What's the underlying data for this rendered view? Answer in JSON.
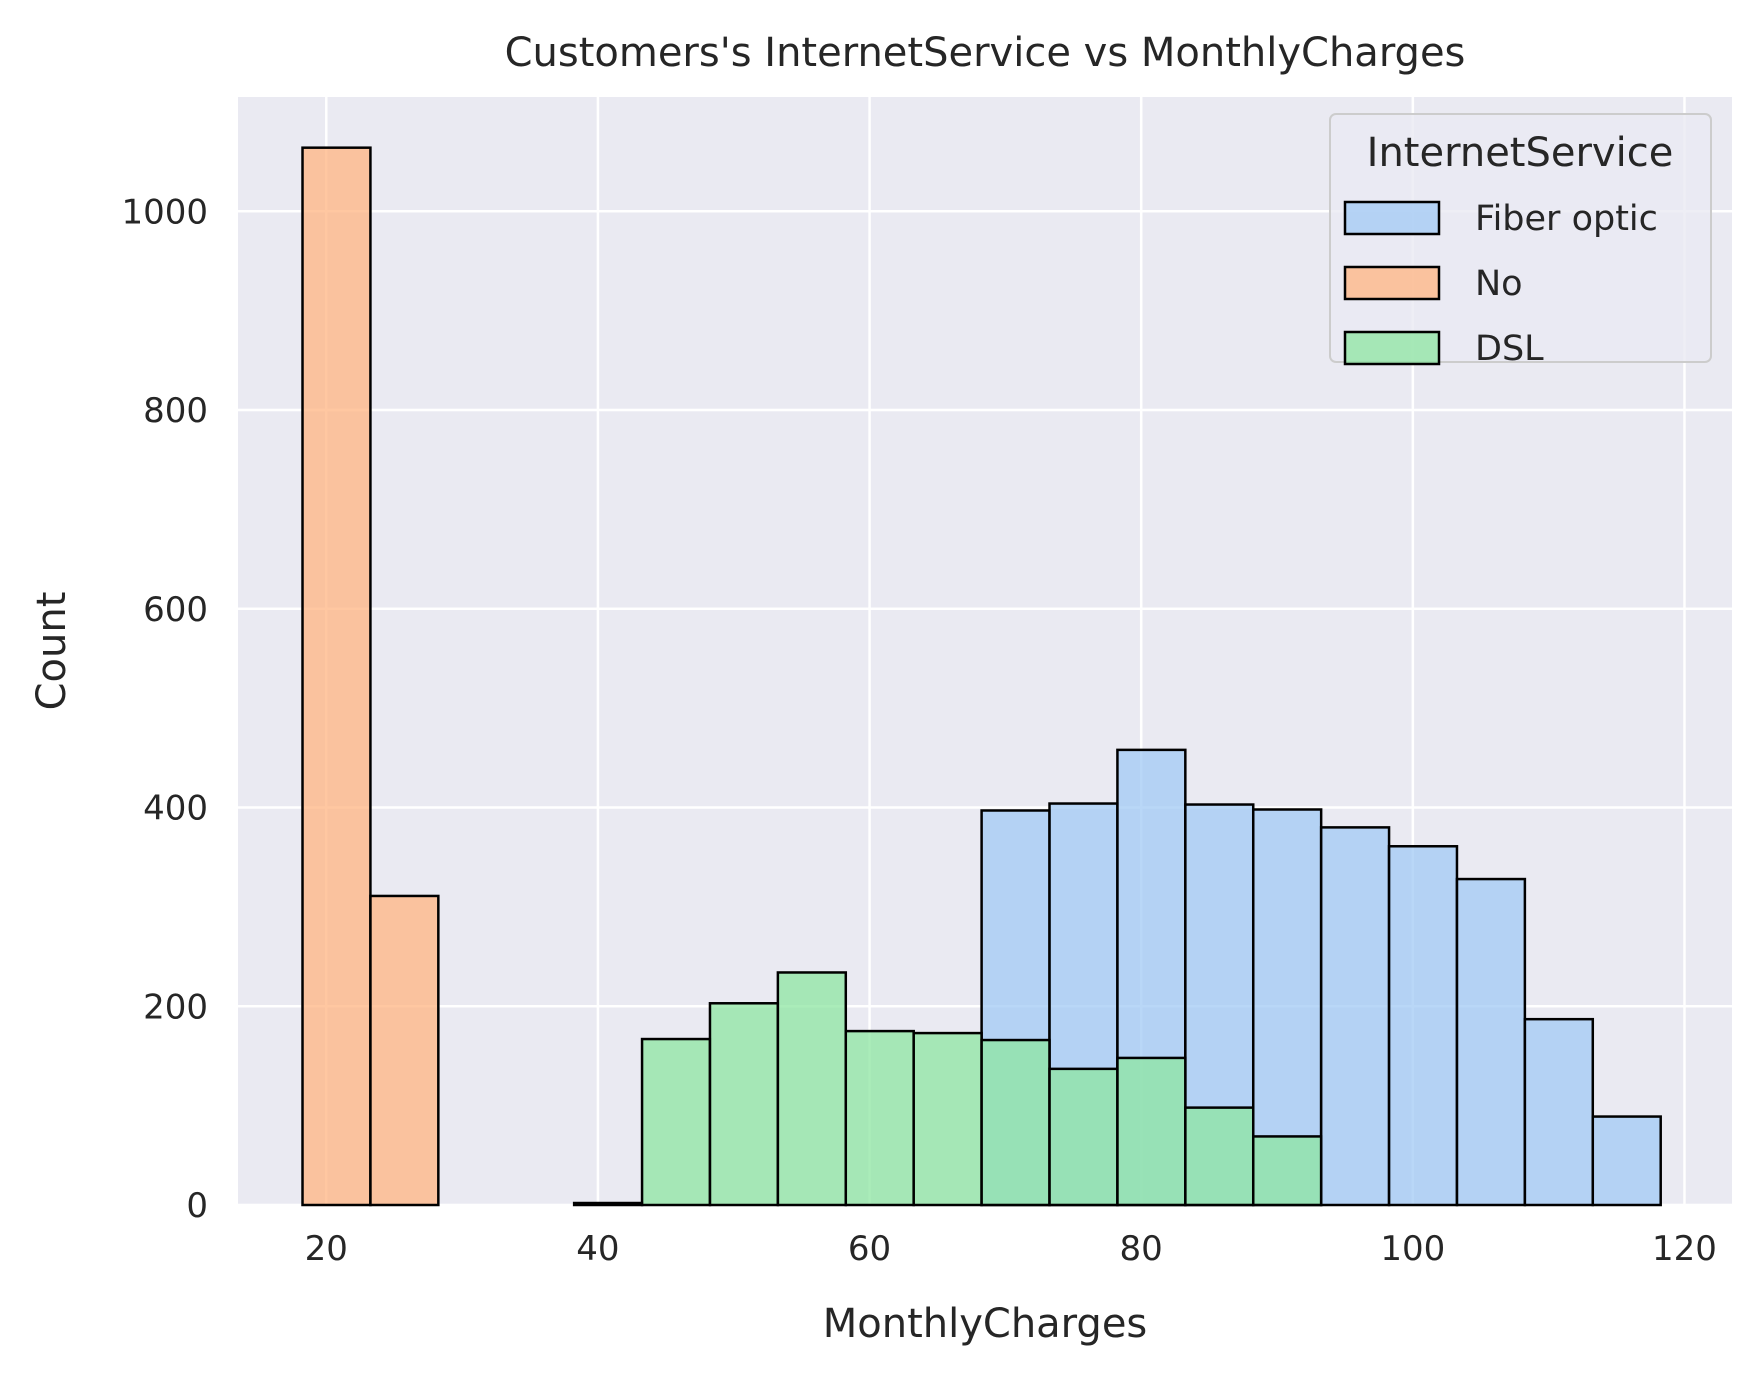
{
  "chart_data": {
    "type": "bar",
    "subtype": "overlaid-histogram",
    "title": "Customers's InternetService vs MonthlyCharges",
    "xlabel": "MonthlyCharges",
    "ylabel": "Count",
    "xlim": [
      13.5,
      123.5
    ],
    "ylim": [
      0,
      1115
    ],
    "xticks": [
      20,
      40,
      60,
      80,
      100,
      120
    ],
    "yticks": [
      0,
      200,
      400,
      600,
      800,
      1000
    ],
    "grid": true,
    "legend": {
      "title": "InternetService",
      "placement": "top-right"
    },
    "bin_edges": [
      18.25,
      23.25,
      28.25,
      33.25,
      38.25,
      43.25,
      48.25,
      53.25,
      58.25,
      63.25,
      68.25,
      73.25,
      78.25,
      83.25,
      88.25,
      93.25,
      98.25,
      103.25,
      108.25,
      113.25,
      118.25
    ],
    "series": [
      {
        "name": "Fiber optic",
        "color": "#a1c9f4",
        "values": [
          0,
          0,
          0,
          0,
          0,
          0,
          0,
          0,
          0,
          0,
          397,
          404,
          458,
          403,
          398,
          380,
          361,
          328,
          187,
          89
        ]
      },
      {
        "name": "No",
        "color": "#ffb482",
        "values": [
          1064,
          311,
          0,
          0,
          0,
          0,
          0,
          0,
          0,
          0,
          0,
          0,
          0,
          0,
          0,
          0,
          0,
          0,
          0,
          0
        ]
      },
      {
        "name": "DSL",
        "color": "#8de5a1",
        "values": [
          0,
          0,
          0,
          0,
          2,
          167,
          203,
          234,
          175,
          173,
          166,
          137,
          148,
          98,
          69,
          0,
          0,
          0,
          0,
          0
        ]
      }
    ]
  }
}
